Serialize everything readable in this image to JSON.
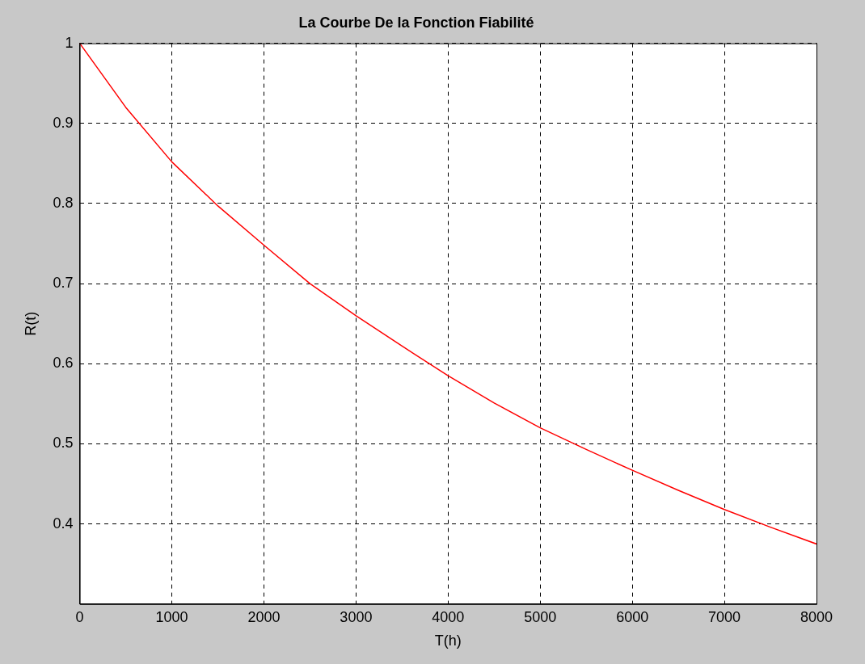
{
  "chart_data": {
    "type": "line",
    "title": "La Courbe De la Fonction Fiabilité",
    "xlabel": "T(h)",
    "ylabel": "R(t)",
    "x": [
      0,
      500,
      1000,
      1500,
      2000,
      2500,
      3000,
      3500,
      4000,
      4500,
      5000,
      5500,
      6000,
      6500,
      7000,
      7500,
      8000
    ],
    "series": [
      {
        "color": "#ff0000",
        "values": [
          1.0,
          0.92,
          0.852,
          0.797,
          0.748,
          0.7,
          0.66,
          0.622,
          0.585,
          0.551,
          0.52,
          0.493,
          0.467,
          0.442,
          0.418,
          0.396,
          0.375
        ]
      }
    ],
    "xlim": [
      0,
      8000
    ],
    "xticks": [
      0,
      1000,
      2000,
      3000,
      4000,
      5000,
      6000,
      7000,
      8000
    ],
    "ylim": [
      0.3,
      1
    ],
    "yticks": [
      0.4,
      0.5,
      0.6,
      0.7,
      0.8,
      0.9,
      1
    ],
    "grid": true,
    "legend": false,
    "marker": "none",
    "line_style": "solid"
  }
}
